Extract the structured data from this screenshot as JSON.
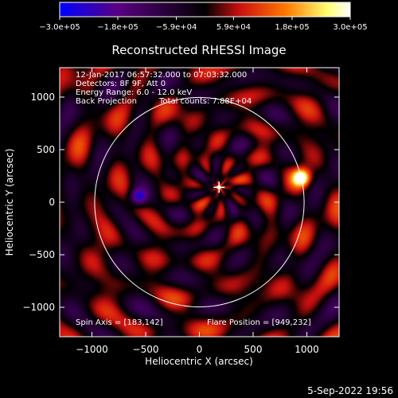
{
  "chart_data": {
    "type": "heatmap",
    "title": "Reconstructed RHESSI Image",
    "xlabel": "Heliocentric X (arcsec)",
    "ylabel": "Heliocentric Y (arcsec)",
    "xlim": [
      -1300,
      1300
    ],
    "ylim": [
      -1280,
      1280
    ],
    "x_ticks": [
      -1000,
      -500,
      0,
      500,
      1000
    ],
    "x_tick_labels": [
      "−1000",
      "−500",
      "0",
      "500",
      "1000"
    ],
    "y_ticks": [
      -1000,
      -500,
      0,
      500,
      1000
    ],
    "y_tick_labels": [
      "−1000",
      "−500",
      "0",
      "500",
      "1000"
    ],
    "colorbar": {
      "min": -300000,
      "max": 300000,
      "tick_values": [
        -300000,
        -180000,
        -59000,
        59000,
        180000,
        300000
      ],
      "tick_labels": [
        "−3.0e+05",
        "−1.8e+05",
        "−5.9e+04",
        "5.9e+04",
        "1.8e+05",
        "3.0e+05"
      ],
      "colormap": [
        "#0000ff",
        "#5a0082",
        "#000000",
        "#cc1010",
        "#ff7a00",
        "#ffff70",
        "#ffffff"
      ]
    },
    "annotations": [
      "12-Jan-2017 06:57:32.000 to 07:03:32.000",
      "Detectors: 8F 9F, Att 0",
      "Energy Range: 6.0 - 12.0 keV",
      "Back Projection",
      "Total counts: 7.88E+04"
    ],
    "spin_axis_label": "Spin Axis = [183,142]",
    "flare_position_label": "Flare Position = [949,232]",
    "spin_axis": [
      183,
      142
    ],
    "flare_position": [
      949,
      232
    ],
    "solar_disk_radius_arcsec": 975,
    "footer": "5-Sep-2022 19:56"
  }
}
